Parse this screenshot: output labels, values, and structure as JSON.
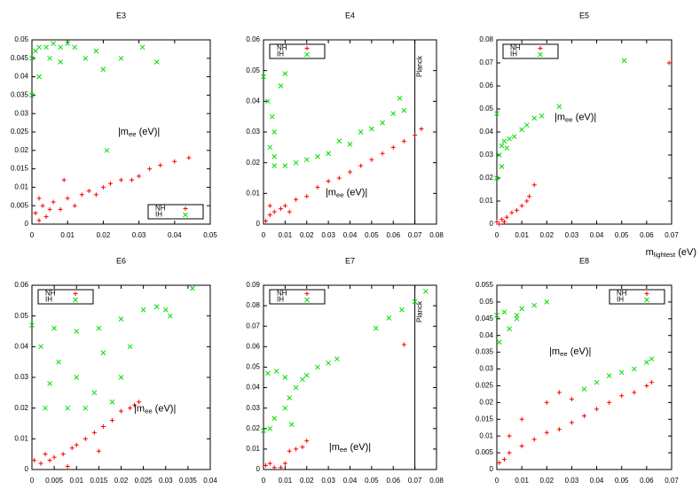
{
  "chart_data": [
    {
      "type": "scatter",
      "title": "E3",
      "xlim": [
        0,
        0.05
      ],
      "ylim": [
        0,
        0.05
      ],
      "xticks": [
        0,
        0.01,
        0.02,
        0.03,
        0.04,
        0.05
      ],
      "yticks": [
        0,
        0.005,
        0.01,
        0.015,
        0.02,
        0.025,
        0.03,
        0.035,
        0.04,
        0.045,
        0.05
      ],
      "annotation": [
        "|m",
        "ee",
        " (eV)|"
      ],
      "legend": "lower right",
      "series": [
        {
          "name": "NH",
          "color": "#ff0000",
          "marker": "+",
          "x": [
            0.001,
            0.002,
            0.003,
            0.004,
            0.005,
            0.006,
            0.008,
            0.01,
            0.012,
            0.014,
            0.016,
            0.018,
            0.02,
            0.022,
            0.025,
            0.028,
            0.03,
            0.033,
            0.036,
            0.04,
            0.044,
            0.009,
            0.002
          ],
          "y": [
            0.003,
            0.001,
            0.005,
            0.002,
            0.004,
            0.006,
            0.004,
            0.007,
            0.005,
            0.008,
            0.009,
            0.008,
            0.01,
            0.011,
            0.012,
            0.012,
            0.013,
            0.015,
            0.016,
            0.017,
            0.018,
            0.012,
            0.007
          ]
        },
        {
          "name": "IH",
          "color": "#00dd00",
          "marker": "x",
          "x": [
            0,
            0,
            0.001,
            0.002,
            0.004,
            0.006,
            0.008,
            0.01,
            0.012,
            0.005,
            0.008,
            0.015,
            0.018,
            0.021,
            0.025,
            0.031,
            0.035,
            0.002,
            0.02
          ],
          "y": [
            0.035,
            0.045,
            0.047,
            0.048,
            0.048,
            0.049,
            0.048,
            0.049,
            0.048,
            0.045,
            0.044,
            0.045,
            0.047,
            0.02,
            0.045,
            0.048,
            0.044,
            0.04,
            0.042
          ]
        }
      ]
    },
    {
      "type": "scatter",
      "title": "E4",
      "xlim": [
        0,
        0.08
      ],
      "ylim": [
        0,
        0.06
      ],
      "xticks": [
        0,
        0.01,
        0.02,
        0.03,
        0.04,
        0.05,
        0.06,
        0.07,
        0.08
      ],
      "yticks": [
        0,
        0.01,
        0.02,
        0.03,
        0.04,
        0.05,
        0.06
      ],
      "annotation": [
        "|m",
        "ee",
        " (eV)|"
      ],
      "legend": "upper left",
      "vline": 0.07,
      "vline_label": "Planck",
      "series": [
        {
          "name": "NH",
          "color": "#ff0000",
          "marker": "+",
          "x": [
            0.001,
            0.003,
            0.005,
            0.008,
            0.01,
            0.015,
            0.02,
            0.025,
            0.03,
            0.035,
            0.04,
            0.045,
            0.05,
            0.055,
            0.06,
            0.065,
            0.07,
            0.073,
            0.003,
            0.012
          ],
          "y": [
            0.001,
            0.003,
            0.004,
            0.005,
            0.006,
            0.008,
            0.009,
            0.012,
            0.014,
            0.015,
            0.017,
            0.019,
            0.021,
            0.023,
            0.025,
            0.027,
            0.029,
            0.031,
            0.006,
            0.004
          ]
        },
        {
          "name": "IH",
          "color": "#00dd00",
          "marker": "x",
          "x": [
            0,
            0.002,
            0.004,
            0.005,
            0.003,
            0.005,
            0.008,
            0.01,
            0.005,
            0.01,
            0.02,
            0.03,
            0.04,
            0.045,
            0.05,
            0.055,
            0.06,
            0.063,
            0.065,
            0.035,
            0.025,
            0.015
          ],
          "y": [
            0.048,
            0.04,
            0.035,
            0.03,
            0.025,
            0.022,
            0.045,
            0.049,
            0.019,
            0.019,
            0.021,
            0.023,
            0.026,
            0.03,
            0.031,
            0.033,
            0.036,
            0.041,
            0.037,
            0.027,
            0.022,
            0.02
          ]
        }
      ]
    },
    {
      "type": "scatter",
      "title": "E5",
      "xlim": [
        0,
        0.07
      ],
      "ylim": [
        0,
        0.08
      ],
      "xticks": [
        0,
        0.01,
        0.02,
        0.03,
        0.04,
        0.05,
        0.06,
        0.07
      ],
      "yticks": [
        0,
        0.01,
        0.02,
        0.03,
        0.04,
        0.05,
        0.06,
        0.07,
        0.08
      ],
      "annotation": [
        "|m",
        "ee",
        " (eV)|"
      ],
      "xlabel": [
        "m",
        "lightest",
        " (eV)"
      ],
      "legend": "upper left",
      "series": [
        {
          "name": "NH",
          "color": "#ff0000",
          "marker": "+",
          "x": [
            0,
            0.002,
            0.004,
            0.006,
            0.008,
            0.01,
            0.012,
            0.013,
            0.015,
            0.069,
            0.001,
            0.003
          ],
          "y": [
            0.001,
            0.002,
            0.003,
            0.005,
            0.006,
            0.008,
            0.01,
            0.012,
            0.017,
            0.07,
            0,
            0.001
          ]
        },
        {
          "name": "IH",
          "color": "#00dd00",
          "marker": "x",
          "x": [
            0,
            0,
            0.001,
            0.002,
            0.003,
            0.005,
            0.007,
            0.01,
            0.012,
            0.015,
            0.018,
            0.025,
            0.051,
            0.002,
            0.004
          ],
          "y": [
            0.02,
            0.048,
            0.03,
            0.034,
            0.036,
            0.037,
            0.038,
            0.041,
            0.043,
            0.046,
            0.047,
            0.051,
            0.071,
            0.025,
            0.033
          ]
        }
      ]
    },
    {
      "type": "scatter",
      "title": "E6",
      "xlim": [
        0,
        0.04
      ],
      "ylim": [
        0,
        0.06
      ],
      "xticks": [
        0,
        0.005,
        0.01,
        0.015,
        0.02,
        0.025,
        0.03,
        0.035,
        0.04
      ],
      "yticks": [
        0,
        0.01,
        0.02,
        0.03,
        0.04,
        0.05,
        0.06
      ],
      "annotation": [
        "|m",
        "ee",
        " (eV)|"
      ],
      "legend": "upper left",
      "series": [
        {
          "name": "NH",
          "color": "#ff0000",
          "marker": "+",
          "x": [
            0.0005,
            0.002,
            0.004,
            0.005,
            0.007,
            0.009,
            0.01,
            0.012,
            0.014,
            0.016,
            0.018,
            0.02,
            0.022,
            0.023,
            0.024,
            0.008,
            0.015,
            0.003
          ],
          "y": [
            0.003,
            0.002,
            0.003,
            0.004,
            0.005,
            0.007,
            0.008,
            0.01,
            0.012,
            0.014,
            0.016,
            0.019,
            0.02,
            0.021,
            0.022,
            0.001,
            0.006,
            0.005
          ]
        },
        {
          "name": "IH",
          "color": "#00dd00",
          "marker": "x",
          "x": [
            0,
            0.005,
            0.01,
            0.015,
            0.02,
            0.025,
            0.028,
            0.03,
            0.031,
            0.036,
            0.002,
            0.006,
            0.01,
            0.014,
            0.018,
            0.003,
            0.008,
            0.012,
            0.02,
            0.022,
            0.004,
            0.016
          ],
          "y": [
            0.047,
            0.046,
            0.045,
            0.046,
            0.049,
            0.052,
            0.053,
            0.052,
            0.05,
            0.059,
            0.04,
            0.035,
            0.03,
            0.025,
            0.022,
            0.02,
            0.02,
            0.02,
            0.03,
            0.04,
            0.028,
            0.038
          ]
        }
      ]
    },
    {
      "type": "scatter",
      "title": "E7",
      "xlim": [
        0,
        0.08
      ],
      "ylim": [
        0,
        0.09
      ],
      "xticks": [
        0,
        0.01,
        0.02,
        0.03,
        0.04,
        0.05,
        0.06,
        0.07,
        0.08
      ],
      "yticks": [
        0,
        0.01,
        0.02,
        0.03,
        0.04,
        0.05,
        0.06,
        0.07,
        0.08,
        0.09
      ],
      "annotation": [
        "|m",
        "ee",
        " (eV)|"
      ],
      "legend": "upper left",
      "vline": 0.07,
      "vline_label": "Planck",
      "series": [
        {
          "name": "NH",
          "color": "#ff0000",
          "marker": "+",
          "x": [
            0.001,
            0.003,
            0.005,
            0.01,
            0.012,
            0.015,
            0.018,
            0.02,
            0.065,
            0.008
          ],
          "y": [
            0.002,
            0.003,
            0.001,
            0.003,
            0.009,
            0.01,
            0.011,
            0.014,
            0.061,
            0.001
          ]
        },
        {
          "name": "IH",
          "color": "#00dd00",
          "marker": "x",
          "x": [
            0,
            0.003,
            0.005,
            0.002,
            0.006,
            0.01,
            0.01,
            0.012,
            0.015,
            0.018,
            0.02,
            0.025,
            0.03,
            0.034,
            0.013,
            0.052,
            0.058,
            0.064,
            0.07,
            0.075
          ],
          "y": [
            0.019,
            0.02,
            0.025,
            0.047,
            0.048,
            0.045,
            0.03,
            0.035,
            0.04,
            0.044,
            0.046,
            0.05,
            0.052,
            0.054,
            0.022,
            0.069,
            0.074,
            0.078,
            0.082,
            0.087
          ]
        }
      ]
    },
    {
      "type": "scatter",
      "title": "E8",
      "xlim": [
        0,
        0.07
      ],
      "ylim": [
        0,
        0.055
      ],
      "xticks": [
        0,
        0.01,
        0.02,
        0.03,
        0.04,
        0.05,
        0.06,
        0.07
      ],
      "yticks": [
        0,
        0.005,
        0.01,
        0.015,
        0.02,
        0.025,
        0.03,
        0.035,
        0.04,
        0.045,
        0.05,
        0.055
      ],
      "annotation": [
        "|m",
        "ee",
        " (eV)|"
      ],
      "legend": "upper right",
      "series": [
        {
          "name": "NH",
          "color": "#ff0000",
          "marker": "+",
          "x": [
            0.001,
            0.003,
            0.005,
            0.01,
            0.015,
            0.02,
            0.025,
            0.03,
            0.035,
            0.04,
            0.045,
            0.05,
            0.055,
            0.06,
            0.062,
            0.01,
            0.02,
            0.025,
            0.03,
            0.005
          ],
          "y": [
            0.002,
            0.003,
            0.005,
            0.007,
            0.009,
            0.011,
            0.012,
            0.014,
            0.016,
            0.018,
            0.02,
            0.022,
            0.023,
            0.025,
            0.026,
            0.015,
            0.02,
            0.023,
            0.021,
            0.01
          ]
        },
        {
          "name": "IH",
          "color": "#00dd00",
          "marker": "x",
          "x": [
            0,
            0.001,
            0.003,
            0.005,
            0.008,
            0.01,
            0.015,
            0.02,
            0.035,
            0.04,
            0.045,
            0.05,
            0.055,
            0.06,
            0.062,
            0.008
          ],
          "y": [
            0.046,
            0.038,
            0.047,
            0.042,
            0.045,
            0.048,
            0.049,
            0.05,
            0.024,
            0.026,
            0.028,
            0.029,
            0.03,
            0.032,
            0.033,
            0.046
          ]
        }
      ]
    }
  ]
}
